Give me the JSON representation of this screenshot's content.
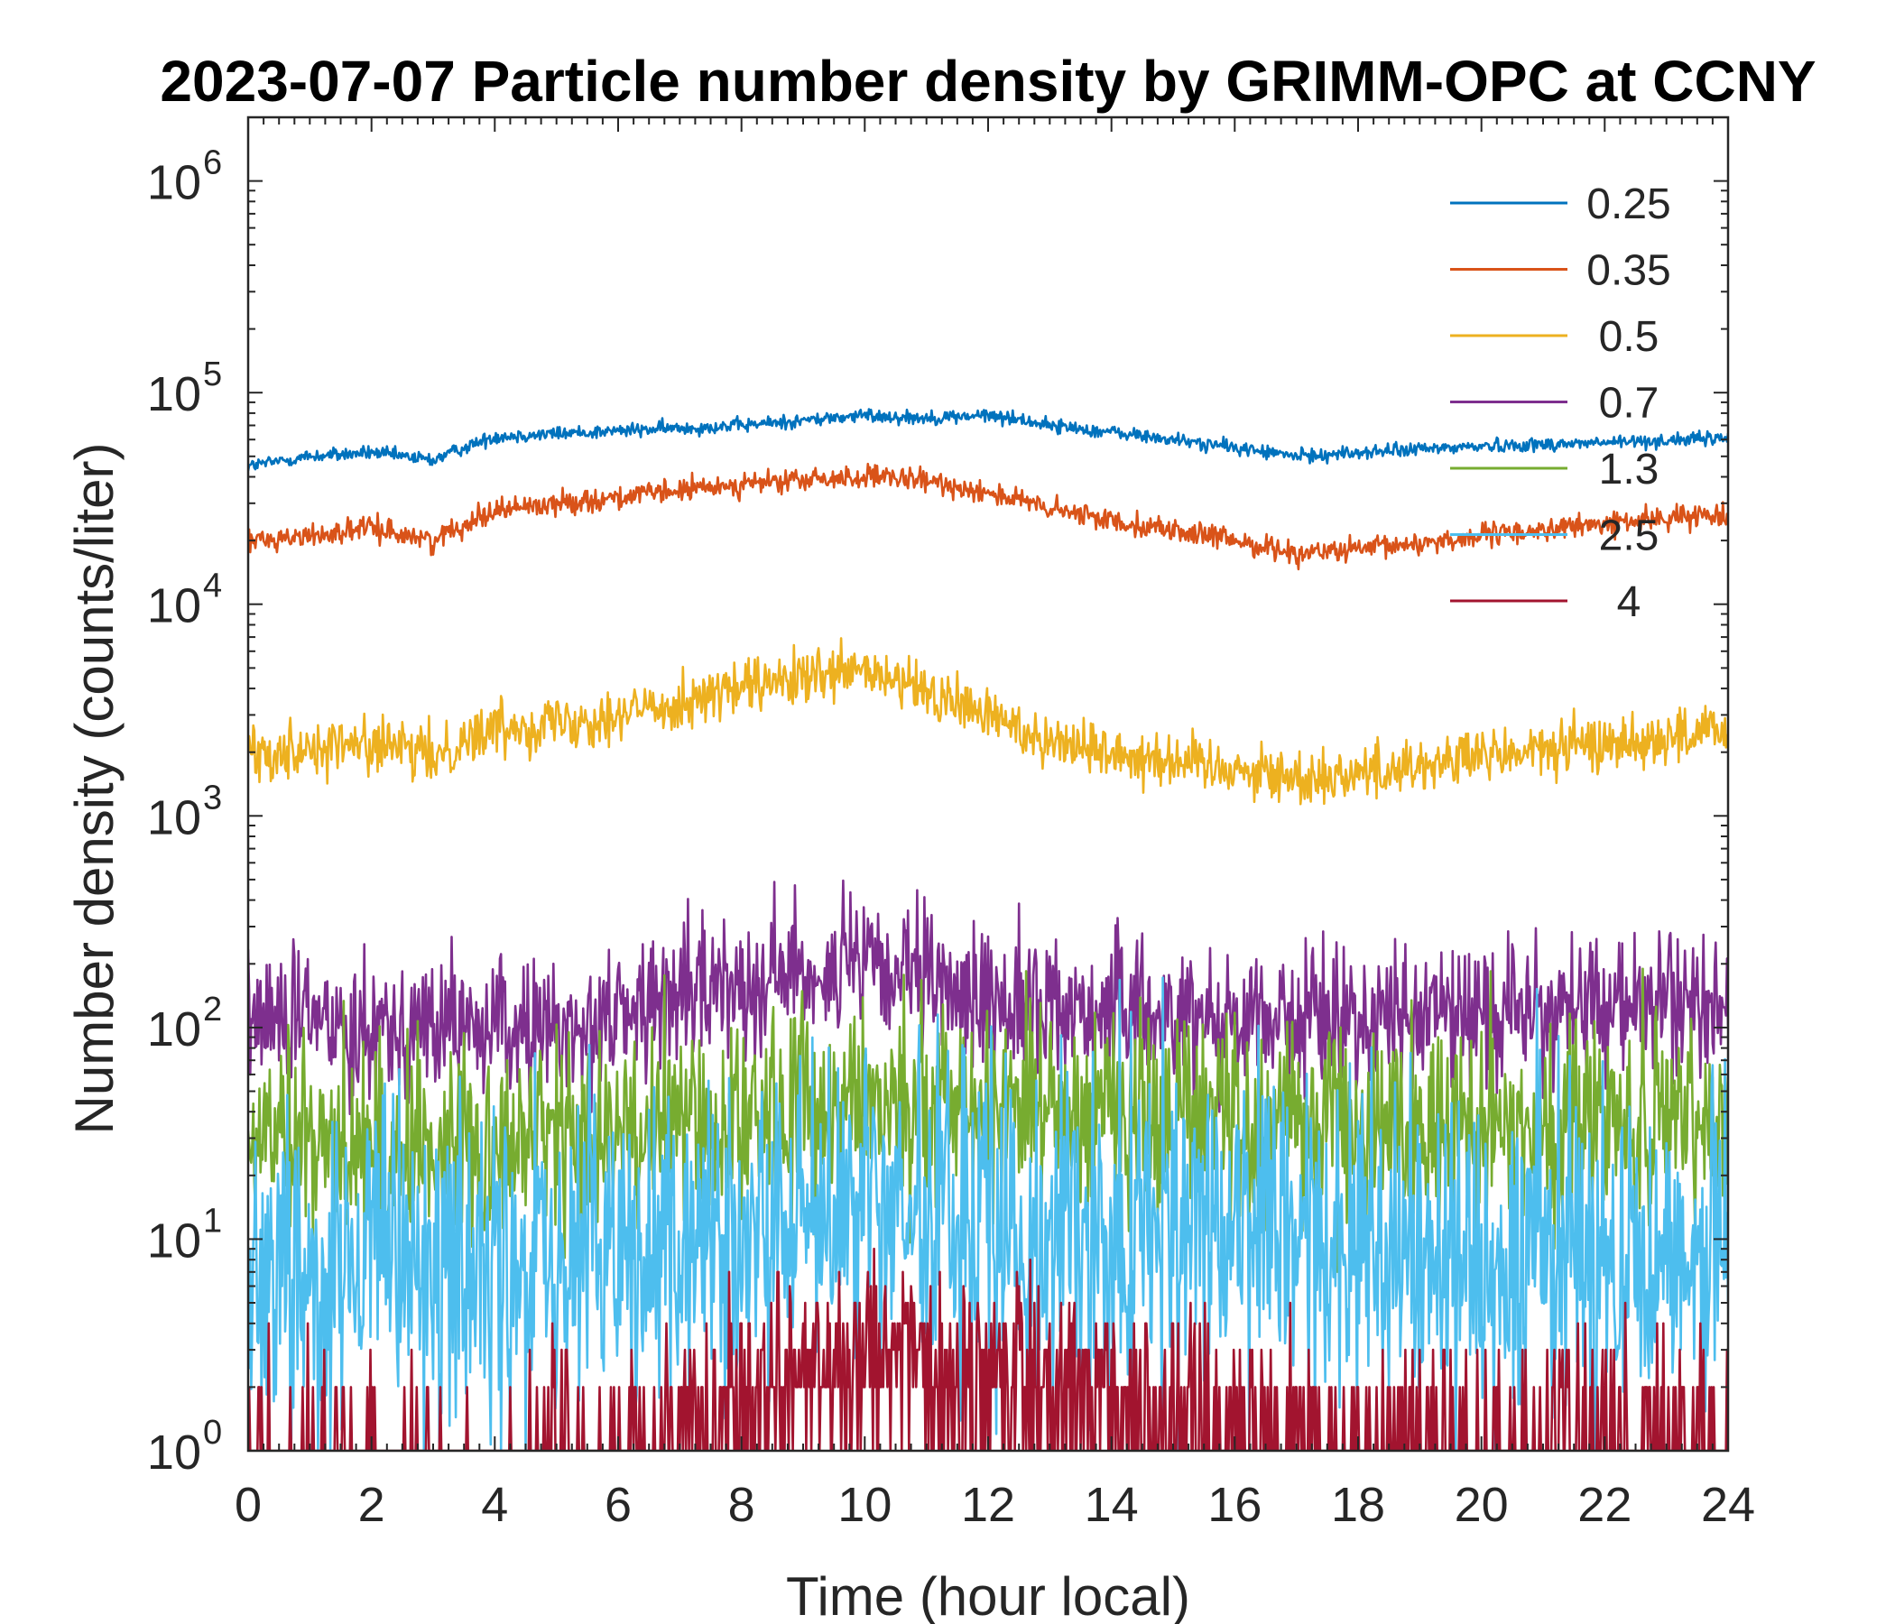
{
  "chart_data": {
    "type": "line",
    "title": "2023-07-07 Particle number density by GRIMM-OPC at CCNY",
    "xlabel": "Time (hour local)",
    "ylabel": "Number density (counts/liter)",
    "xlim": [
      0,
      24
    ],
    "ylim": [
      1,
      2000000
    ],
    "yscale": "log",
    "xticks": [
      0,
      2,
      4,
      6,
      8,
      10,
      12,
      14,
      16,
      18,
      20,
      22,
      24
    ],
    "yticks": [
      {
        "value": 1,
        "base": "10",
        "exp": "0"
      },
      {
        "value": 10,
        "base": "10",
        "exp": "1"
      },
      {
        "value": 100,
        "base": "10",
        "exp": "2"
      },
      {
        "value": 1000,
        "base": "10",
        "exp": "3"
      },
      {
        "value": 10000,
        "base": "10",
        "exp": "4"
      },
      {
        "value": 100000,
        "base": "10",
        "exp": "5"
      },
      {
        "value": 1000000,
        "base": "10",
        "exp": "6"
      }
    ],
    "legend_position": "top-right",
    "series": [
      {
        "name": "0.25",
        "color": "#0072BD",
        "noise": 0.03,
        "x": [
          0,
          1,
          2,
          3,
          3.5,
          4,
          6,
          8,
          10,
          11,
          12,
          12.5,
          13,
          14,
          16,
          17,
          18,
          20,
          22,
          24
        ],
        "values": [
          45000,
          50000,
          52000,
          48000,
          55000,
          62000,
          66000,
          70000,
          78000,
          76000,
          78000,
          75000,
          70000,
          65000,
          55000,
          50000,
          52000,
          56000,
          58000,
          61000
        ]
      },
      {
        "name": "0.35",
        "color": "#D95319",
        "noise": 0.05,
        "x": [
          0,
          1,
          2,
          3,
          3.5,
          4,
          6,
          8,
          10,
          11,
          12,
          12.5,
          13,
          14,
          16,
          17,
          18,
          20,
          22,
          24
        ],
        "values": [
          20000,
          21000,
          23000,
          20000,
          24000,
          28000,
          32000,
          37000,
          40000,
          38000,
          34000,
          31000,
          28000,
          25000,
          20000,
          17500,
          18000,
          21000,
          24000,
          27000
        ]
      },
      {
        "name": "0.5",
        "color": "#EDB120",
        "noise": 0.12,
        "x": [
          0,
          1,
          2,
          3,
          3.5,
          4,
          6,
          8,
          10,
          11,
          12,
          12.5,
          13,
          14,
          16,
          17,
          18,
          20,
          22,
          24
        ],
        "values": [
          2000,
          2100,
          2200,
          1900,
          2300,
          2600,
          3000,
          4000,
          4800,
          3800,
          3000,
          2600,
          2300,
          2000,
          1700,
          1500,
          1600,
          1900,
          2200,
          2500
        ]
      },
      {
        "name": "0.7",
        "color": "#7E2F8E",
        "noise": 0.3,
        "x": [
          0,
          2,
          4,
          5,
          6,
          7,
          8,
          9,
          10,
          11,
          12,
          14,
          16,
          18,
          20,
          22,
          24
        ],
        "values": [
          110,
          105,
          100,
          95,
          115,
          140,
          170,
          185,
          190,
          160,
          135,
          120,
          115,
          110,
          120,
          125,
          130
        ]
      },
      {
        "name": "1.3",
        "color": "#77AC30",
        "noise": 0.45,
        "x": [
          0,
          2,
          4,
          6,
          8,
          10,
          12,
          14,
          16,
          18,
          20,
          22,
          24
        ],
        "values": [
          28,
          27,
          29,
          32,
          38,
          46,
          45,
          42,
          38,
          35,
          34,
          35,
          33
        ]
      },
      {
        "name": "2.5",
        "color": "#4DBEEE",
        "noise": 0.75,
        "x": [
          0,
          2,
          4,
          6,
          8,
          10,
          12,
          14,
          16,
          18,
          20,
          22,
          24
        ],
        "values": [
          8,
          7,
          7,
          8,
          10,
          14,
          12,
          11,
          10,
          9,
          9,
          9,
          9
        ]
      },
      {
        "name": "4",
        "color": "#A2142F",
        "noise": 0,
        "x": [
          0,
          2,
          4,
          6,
          7,
          8,
          10,
          11,
          12,
          14,
          15,
          16,
          18,
          20,
          22,
          24
        ],
        "values": [
          0.6,
          0.5,
          0.5,
          0.7,
          1.2,
          2.0,
          3.0,
          2.8,
          2.5,
          2.0,
          1.6,
          1.1,
          0.8,
          1.0,
          1.2,
          1.1
        ]
      }
    ]
  }
}
